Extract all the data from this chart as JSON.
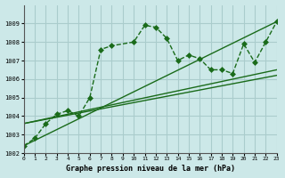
{
  "title": "Graphe pression niveau de la mer (hPa)",
  "bg_color": "#cce8e8",
  "grid_color": "#aacccc",
  "line_color": "#1a6b1a",
  "xlim": [
    0,
    23
  ],
  "ylim": [
    1002,
    1010
  ],
  "yticks": [
    1002,
    1003,
    1004,
    1005,
    1006,
    1007,
    1008,
    1009
  ],
  "xticks": [
    0,
    1,
    2,
    3,
    4,
    5,
    6,
    7,
    8,
    9,
    10,
    11,
    12,
    13,
    14,
    15,
    16,
    17,
    18,
    19,
    20,
    21,
    22,
    23
  ],
  "series": [
    {
      "x": [
        0,
        1,
        2,
        3,
        4,
        5,
        6,
        7,
        8,
        10,
        11,
        12,
        13,
        14,
        15,
        16,
        17,
        18,
        19,
        20,
        21,
        22,
        23
      ],
      "y": [
        1002.4,
        1002.8,
        1003.6,
        1004.1,
        1004.3,
        1004.0,
        1005.0,
        1007.6,
        1007.8,
        1008.0,
        1008.9,
        1008.8,
        1008.2,
        1007.0,
        1007.3,
        1007.1,
        1006.5,
        1006.5,
        1006.3,
        1007.9,
        1006.9,
        1008.0,
        1009.1
      ],
      "style": "solid",
      "marker": "D",
      "markersize": 3
    },
    {
      "x": [
        0,
        23
      ],
      "y": [
        1002.4,
        1009.1
      ],
      "style": "solid",
      "marker": null,
      "markersize": 0
    },
    {
      "x": [
        0,
        23
      ],
      "y": [
        1003.6,
        1006.2
      ],
      "style": "solid",
      "marker": null,
      "markersize": 0
    },
    {
      "x": [
        0,
        23
      ],
      "y": [
        1003.6,
        1006.5
      ],
      "style": "solid",
      "marker": null,
      "markersize": 0
    }
  ]
}
